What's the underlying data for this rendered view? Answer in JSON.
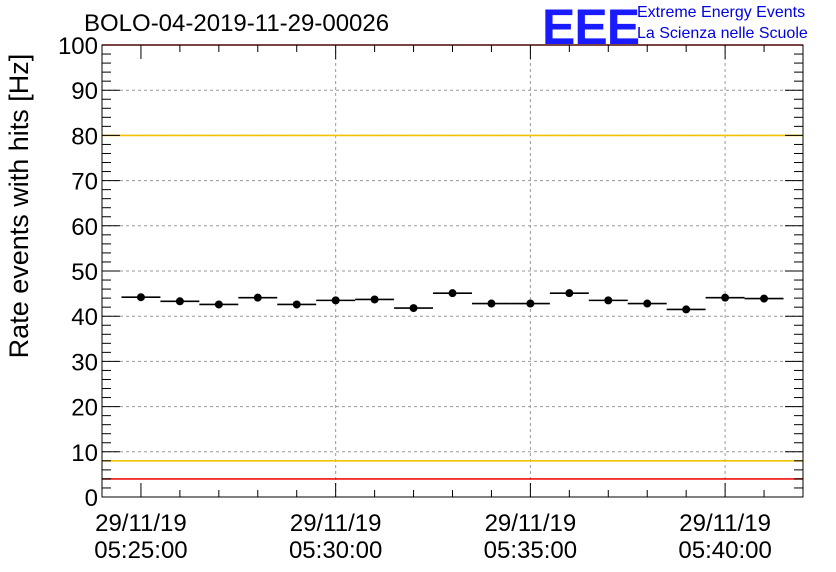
{
  "header": {
    "title": "BOLO-04-2019-11-29-00026",
    "logo_text": "EEE",
    "logo_line1": "Extreme Energy Events",
    "logo_line2": "La Scienza nelle Scuole"
  },
  "chart_data": {
    "type": "scatter",
    "title": "BOLO-04-2019-11-29-00026",
    "xlabel": "",
    "ylabel": "Rate events with hits [Hz]",
    "ylim": [
      0,
      100
    ],
    "y_ticks": [
      0,
      10,
      20,
      30,
      40,
      50,
      60,
      70,
      80,
      90,
      100
    ],
    "x_range_minutes": [
      -1.0,
      17.0
    ],
    "x_tick_minutes": [
      0,
      5,
      10,
      15
    ],
    "x_tick_dates": [
      "29/11/19",
      "29/11/19",
      "29/11/19",
      "29/11/19"
    ],
    "x_tick_times": [
      "05:25:00",
      "05:30:00",
      "05:35:00",
      "05:40:00"
    ],
    "x_origin_time": "05:25:00",
    "bin_width_minutes": 1.0,
    "grid": true,
    "series": [
      {
        "name": "rate",
        "x_minutes": [
          0,
          1,
          2,
          3,
          4,
          5,
          6,
          7,
          8,
          9,
          10,
          11,
          12,
          13,
          14,
          15,
          16
        ],
        "values": [
          44.2,
          43.3,
          42.6,
          44.1,
          42.6,
          43.5,
          43.7,
          41.8,
          45.1,
          42.8,
          42.8,
          45.1,
          43.5,
          42.8,
          41.5,
          44.1,
          43.9
        ]
      }
    ],
    "reference_lines": [
      {
        "value": 100,
        "color": "#ee1111"
      },
      {
        "value": 80,
        "color": "#f0c400"
      },
      {
        "value": 8,
        "color": "#f0c400"
      },
      {
        "value": 4,
        "color": "#ee1111"
      }
    ]
  }
}
